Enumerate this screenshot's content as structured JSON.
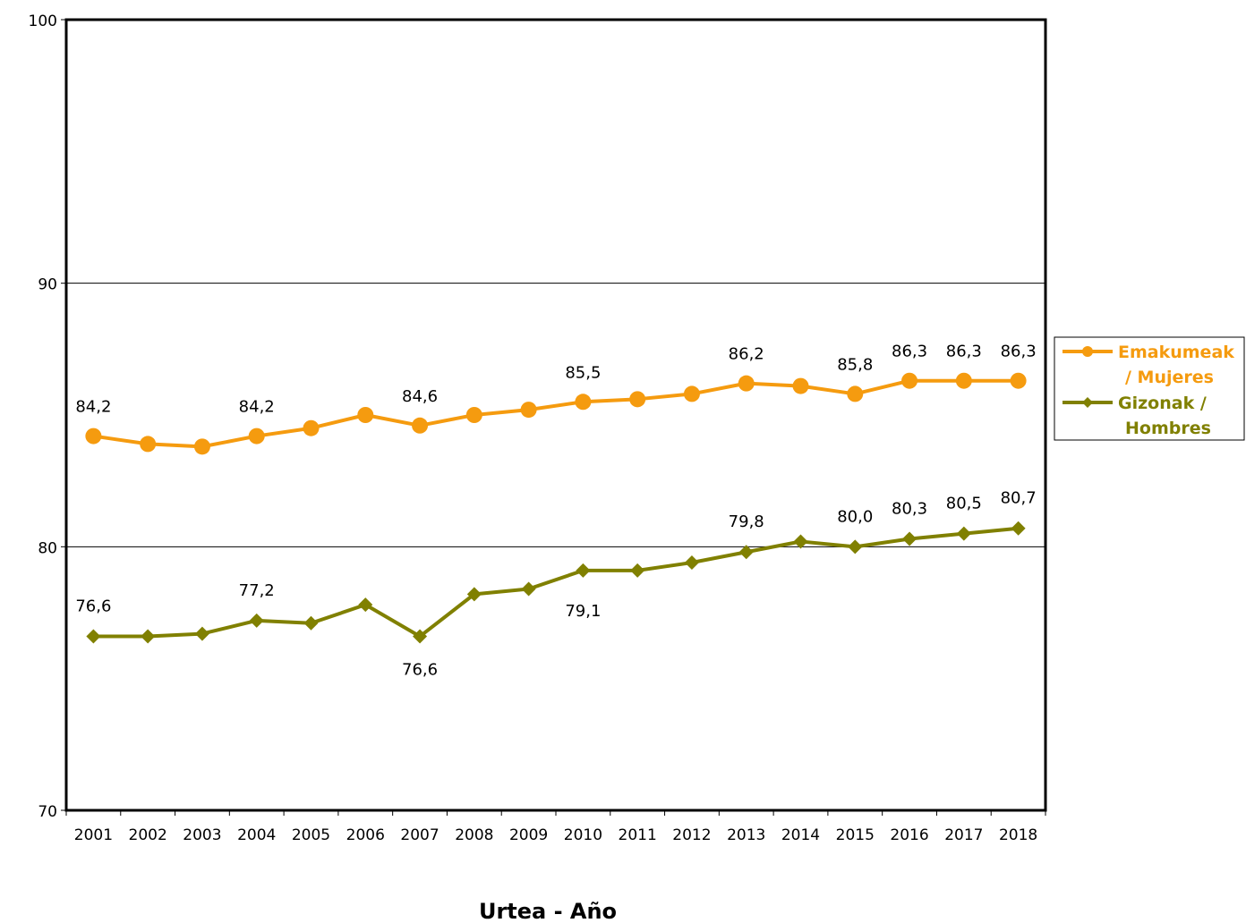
{
  "chart_data": {
    "type": "line",
    "xlabel": "Urtea - Año",
    "ylabel": "",
    "ylim": [
      70,
      100
    ],
    "yticks": [
      70,
      80,
      90,
      100
    ],
    "grid": true,
    "legend_position": "right",
    "categories": [
      "2001",
      "2002",
      "2003",
      "2004",
      "2005",
      "2006",
      "2007",
      "2008",
      "2009",
      "2010",
      "2011",
      "2012",
      "2013",
      "2014",
      "2015",
      "2016",
      "2017",
      "2018"
    ],
    "series": [
      {
        "name_lines": [
          "Emakumeak",
          "/ Mujeres"
        ],
        "color": "#f59b0f",
        "marker": "circle",
        "values": [
          84.2,
          83.9,
          83.8,
          84.2,
          84.5,
          85.0,
          84.6,
          85.0,
          85.2,
          85.5,
          85.6,
          85.8,
          86.2,
          86.1,
          85.8,
          86.3,
          86.3,
          86.3
        ],
        "labels": [
          "84,2",
          null,
          null,
          "84,2",
          null,
          null,
          "84,6",
          null,
          null,
          "85,5",
          null,
          null,
          "86,2",
          null,
          "85,8",
          "86,3",
          "86,3",
          "86,3"
        ]
      },
      {
        "name_lines": [
          "Gizonak /",
          "Hombres"
        ],
        "color": "#808000",
        "marker": "diamond",
        "values": [
          76.6,
          76.6,
          76.7,
          77.2,
          77.1,
          77.8,
          76.6,
          78.2,
          78.4,
          79.1,
          79.1,
          79.4,
          79.8,
          80.2,
          80.0,
          80.3,
          80.5,
          80.7
        ],
        "labels": [
          "76,6",
          null,
          null,
          "77,2",
          null,
          null,
          "76,6",
          null,
          null,
          "79,1",
          null,
          null,
          "79,8",
          null,
          "80,0",
          "80,3",
          "80,5",
          "80,7"
        ]
      }
    ]
  }
}
